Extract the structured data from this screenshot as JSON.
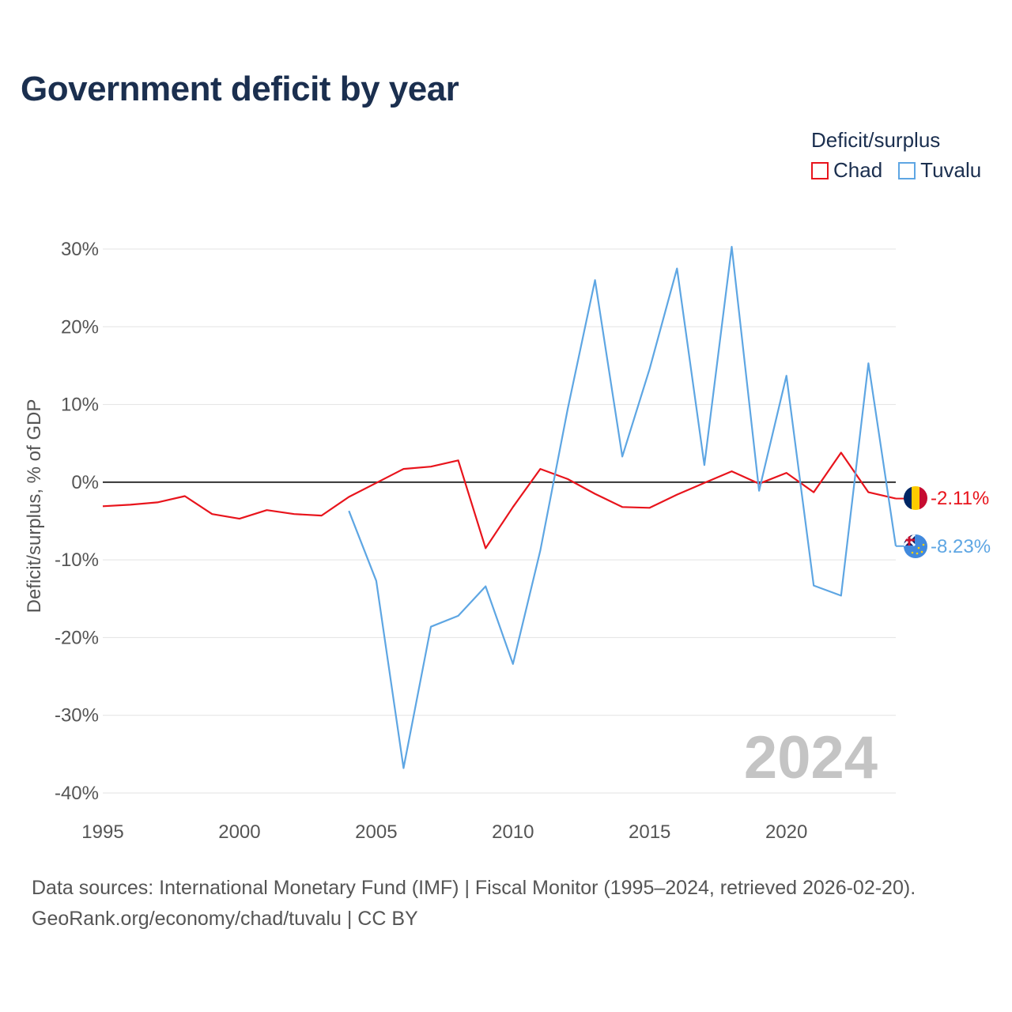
{
  "chart_data": {
    "type": "line",
    "title": "Government deficit by year",
    "ylabel": "Deficit/surplus, % of GDP",
    "xlabel": "",
    "xlim": [
      1995,
      2024
    ],
    "ylim": [
      -40,
      30
    ],
    "x_ticks": [
      1995,
      2000,
      2005,
      2010,
      2015,
      2020
    ],
    "x_tick_labels": [
      "1995",
      "2000",
      "2005",
      "2010",
      "2015",
      "2020"
    ],
    "y_ticks": [
      30,
      20,
      10,
      0,
      -10,
      -20,
      -30,
      -40
    ],
    "y_tick_labels": [
      "30%",
      "20%",
      "10%",
      "0%",
      "-10%",
      "-20%",
      "-30%",
      "-40%"
    ],
    "legend_title": "Deficit/surplus",
    "legend_position": "top-right",
    "year_watermark": "2024",
    "series": [
      {
        "name": "Chad",
        "color": "#e8141c",
        "x": [
          1995,
          1996,
          1997,
          1998,
          1999,
          2000,
          2001,
          2002,
          2003,
          2004,
          2005,
          2006,
          2007,
          2008,
          2009,
          2010,
          2011,
          2012,
          2013,
          2014,
          2015,
          2016,
          2017,
          2018,
          2019,
          2020,
          2021,
          2022,
          2023,
          2024
        ],
        "values": [
          -3.1,
          -2.9,
          -2.6,
          -1.8,
          -4.1,
          -4.7,
          -3.6,
          -4.1,
          -4.3,
          -1.9,
          -0.1,
          1.7,
          2.0,
          2.8,
          -8.5,
          -3.2,
          1.7,
          0.4,
          -1.5,
          -3.2,
          -3.3,
          -1.6,
          -0.1,
          1.4,
          -0.2,
          1.2,
          -1.3,
          3.8,
          -1.3,
          -2.11
        ],
        "end_label": "-2.11%"
      },
      {
        "name": "Tuvalu",
        "color": "#5ea6e3",
        "x": [
          2004,
          2005,
          2006,
          2007,
          2008,
          2009,
          2010,
          2011,
          2012,
          2013,
          2014,
          2015,
          2016,
          2017,
          2018,
          2019,
          2020,
          2021,
          2022,
          2023,
          2024
        ],
        "values": [
          -3.7,
          -12.7,
          -36.8,
          -18.6,
          -17.2,
          -13.4,
          -23.4,
          -8.8,
          9.4,
          26.0,
          3.3,
          14.6,
          27.5,
          2.2,
          30.3,
          -1.1,
          13.7,
          -13.3,
          -14.6,
          15.3,
          -8.23
        ],
        "end_label": "-8.23%"
      }
    ]
  },
  "source": {
    "line1": "Data sources: International Monetary Fund (IMF) | Fiscal Monitor (1995–2024, retrieved 2026-02-20).",
    "line2": "GeoRank.org/economy/chad/tuvalu | CC BY"
  }
}
